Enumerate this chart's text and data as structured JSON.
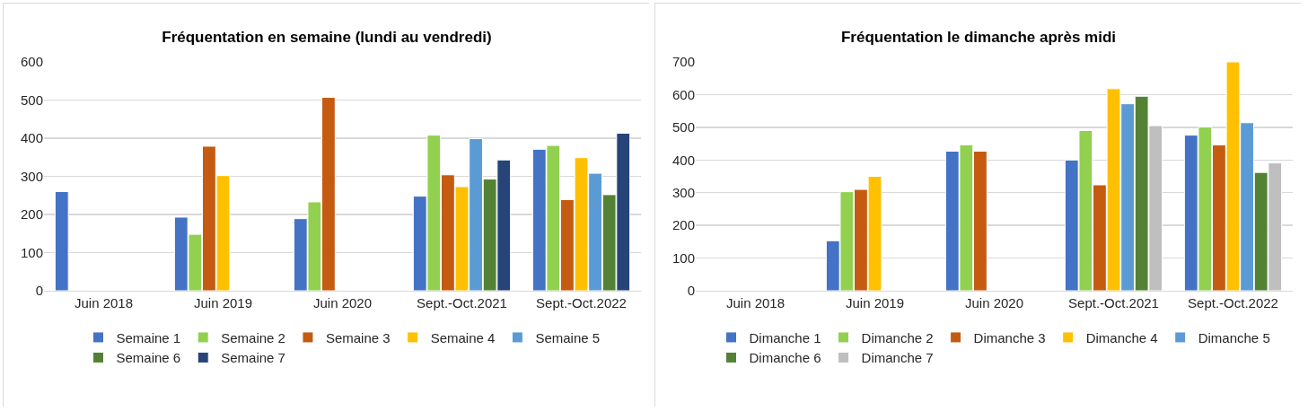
{
  "chart_data": [
    {
      "type": "bar",
      "title": "Fréquentation en semaine (lundi au vendredi)",
      "categories": [
        "Juin 2018",
        "Juin 2019",
        "Juin 2020",
        "Sept.-Oct.2021",
        "Sept.-Oct.2022"
      ],
      "ylim": [
        0,
        600
      ],
      "yticks": [
        0,
        100,
        200,
        300,
        400,
        500,
        600
      ],
      "grid": "y",
      "legend": "bottom",
      "series": [
        {
          "name": "Semaine 1",
          "color": "#4472c4",
          "values": [
            260,
            193,
            189,
            248,
            371
          ]
        },
        {
          "name": "Semaine 2",
          "color": "#92d050",
          "values": [
            null,
            148,
            233,
            408,
            381
          ]
        },
        {
          "name": "Semaine 3",
          "color": "#c55a11",
          "values": [
            null,
            379,
            507,
            304,
            239
          ]
        },
        {
          "name": "Semaine 4",
          "color": "#ffc000",
          "values": [
            null,
            302,
            null,
            273,
            349
          ]
        },
        {
          "name": "Semaine 5",
          "color": "#5b9bd5",
          "values": [
            null,
            null,
            null,
            399,
            308
          ]
        },
        {
          "name": "Semaine 6",
          "color": "#548235",
          "values": [
            null,
            null,
            null,
            293,
            252
          ]
        },
        {
          "name": "Semaine 7",
          "color": "#264478",
          "values": [
            null,
            null,
            null,
            343,
            413
          ]
        }
      ]
    },
    {
      "type": "bar",
      "title": "Fréquentation le dimanche après midi",
      "categories": [
        "Juin 2018",
        "Juin 2019",
        "Juin 2020",
        "Sept.-Oct.2021",
        "Sept.-Oct.2022"
      ],
      "ylim": [
        0,
        700
      ],
      "yticks": [
        0,
        100,
        200,
        300,
        400,
        500,
        600,
        700
      ],
      "grid": "y",
      "legend": "bottom",
      "series": [
        {
          "name": "Dimanche 1",
          "color": "#4472c4",
          "values": [
            null,
            153,
            427,
            400,
            476
          ]
        },
        {
          "name": "Dimanche 2",
          "color": "#92d050",
          "values": [
            null,
            303,
            446,
            490,
            501
          ]
        },
        {
          "name": "Dimanche 3",
          "color": "#c55a11",
          "values": [
            null,
            310,
            427,
            324,
            446
          ]
        },
        {
          "name": "Dimanche 4",
          "color": "#ffc000",
          "values": [
            null,
            350,
            null,
            618,
            700
          ]
        },
        {
          "name": "Dimanche 5",
          "color": "#5b9bd5",
          "values": [
            null,
            null,
            null,
            572,
            514
          ]
        },
        {
          "name": "Dimanche 6",
          "color": "#548235",
          "values": [
            null,
            null,
            null,
            595,
            362
          ]
        },
        {
          "name": "Dimanche 7",
          "color": "#bfbfbf",
          "values": [
            null,
            null,
            null,
            505,
            391
          ]
        }
      ]
    }
  ]
}
